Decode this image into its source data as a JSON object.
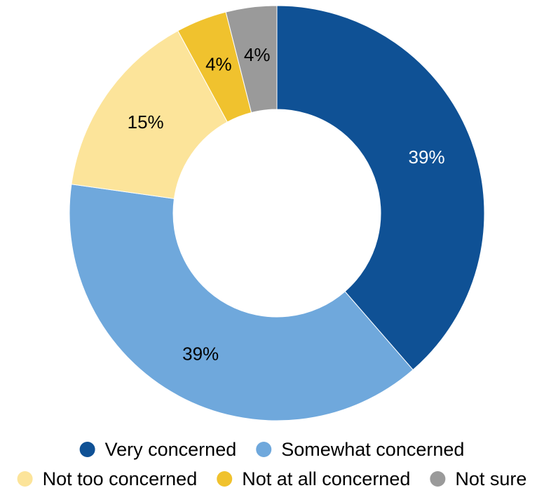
{
  "chart_data": {
    "type": "pie",
    "donut": true,
    "title": "",
    "start_angle_deg": 0,
    "direction": "clockwise",
    "slices": [
      {
        "name": "Very concerned",
        "value": 39,
        "label": "39%",
        "color": "#0f5195",
        "label_color": "#ffffff"
      },
      {
        "name": "Somewhat concerned",
        "value": 39,
        "label": "39%",
        "color": "#6fa8dc",
        "label_color": "#000000"
      },
      {
        "name": "Not too concerned",
        "value": 15,
        "label": "15%",
        "color": "#fce49a",
        "label_color": "#000000"
      },
      {
        "name": "Not at all concerned",
        "value": 4,
        "label": "4%",
        "color": "#f0c22e",
        "label_color": "#000000"
      },
      {
        "name": "Not sure",
        "value": 4,
        "label": "4%",
        "color": "#9a9a9a",
        "label_color": "#000000"
      }
    ],
    "legend": {
      "position": "bottom",
      "items": [
        {
          "label": "Very concerned",
          "color": "#0f5195"
        },
        {
          "label": "Somewhat concerned",
          "color": "#6fa8dc"
        },
        {
          "label": "Not too concerned",
          "color": "#fce49a"
        },
        {
          "label": "Not at all concerned",
          "color": "#f0c22e"
        },
        {
          "label": "Not sure",
          "color": "#9a9a9a"
        }
      ]
    }
  }
}
